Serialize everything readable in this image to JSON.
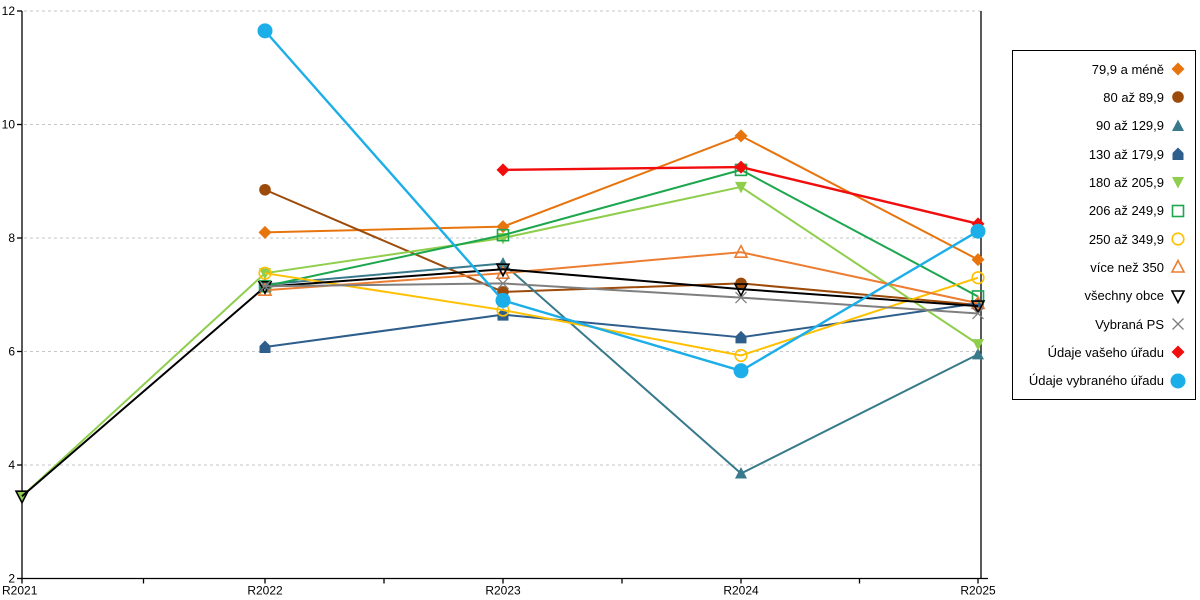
{
  "chart_data": {
    "type": "line",
    "title": "",
    "xlabel": "",
    "ylabel": "",
    "categories": [
      "R2021",
      "R2022",
      "R2023",
      "R2024",
      "R2025"
    ],
    "y_axis": {
      "min": 2,
      "max": 12,
      "step": 2,
      "tick_labels": [
        "2",
        "4",
        "6",
        "8",
        "10",
        "12"
      ]
    },
    "grid": "horizontal-dashed",
    "gridline_color": "#c6c6c6",
    "axis_color": "#000000",
    "legend_position": "right",
    "series": [
      {
        "name": "79,9 a méně",
        "color": "#e8740d",
        "marker": "diamond",
        "marker_fill": "filled",
        "values": [
          null,
          8.1,
          8.2,
          9.8,
          7.62
        ]
      },
      {
        "name": "80 až 89,9",
        "color": "#9c4b0b",
        "marker": "circle",
        "marker_fill": "filled",
        "values": [
          null,
          8.85,
          7.05,
          7.2,
          6.82
        ]
      },
      {
        "name": "90 až 129,9",
        "color": "#38798c",
        "marker": "triangle-up",
        "marker_fill": "filled",
        "values": [
          null,
          7.18,
          7.55,
          3.85,
          5.95
        ]
      },
      {
        "name": "130 až 179,9",
        "color": "#2e5e8c",
        "marker": "pentagon",
        "marker_fill": "filled",
        "values": [
          null,
          6.08,
          6.65,
          6.25,
          6.85
        ]
      },
      {
        "name": "180 až 205,9",
        "color": "#8fce4c",
        "marker": "triangle-down",
        "marker_fill": "filled",
        "values": [
          3.45,
          7.38,
          8.0,
          8.9,
          6.13
        ]
      },
      {
        "name": "206 až 249,9",
        "color": "#1ca64d",
        "marker": "square",
        "marker_fill": "open",
        "values": [
          null,
          7.15,
          8.05,
          9.2,
          6.97
        ]
      },
      {
        "name": "250 až 349,9",
        "color": "#ffc000",
        "marker": "circle",
        "marker_fill": "open",
        "values": [
          null,
          7.38,
          6.73,
          5.93,
          7.3
        ]
      },
      {
        "name": "více než 350",
        "color": "#ed7d31",
        "marker": "triangle-up",
        "marker_fill": "open",
        "values": [
          null,
          7.08,
          7.38,
          7.75,
          6.85
        ]
      },
      {
        "name": "všechny obce",
        "color": "#000000",
        "marker": "triangle-down",
        "marker_fill": "open",
        "values": [
          3.45,
          7.14,
          7.45,
          7.1,
          6.8
        ]
      },
      {
        "name": "Vybraná PS",
        "color": "#7f7f7f",
        "marker": "x",
        "marker_fill": "open",
        "values": [
          null,
          7.15,
          7.2,
          6.95,
          6.67
        ]
      },
      {
        "name": "Údaje vašeho úřadu",
        "color": "#f10d0d",
        "marker": "diamond",
        "marker_fill": "filled",
        "values": [
          null,
          null,
          9.2,
          9.25,
          8.25
        ]
      },
      {
        "name": "Údaje vybraného úřadu",
        "color": "#1caee8",
        "marker": "circle-big",
        "marker_fill": "filled",
        "values": [
          null,
          11.65,
          6.9,
          5.66,
          8.12
        ]
      }
    ]
  }
}
